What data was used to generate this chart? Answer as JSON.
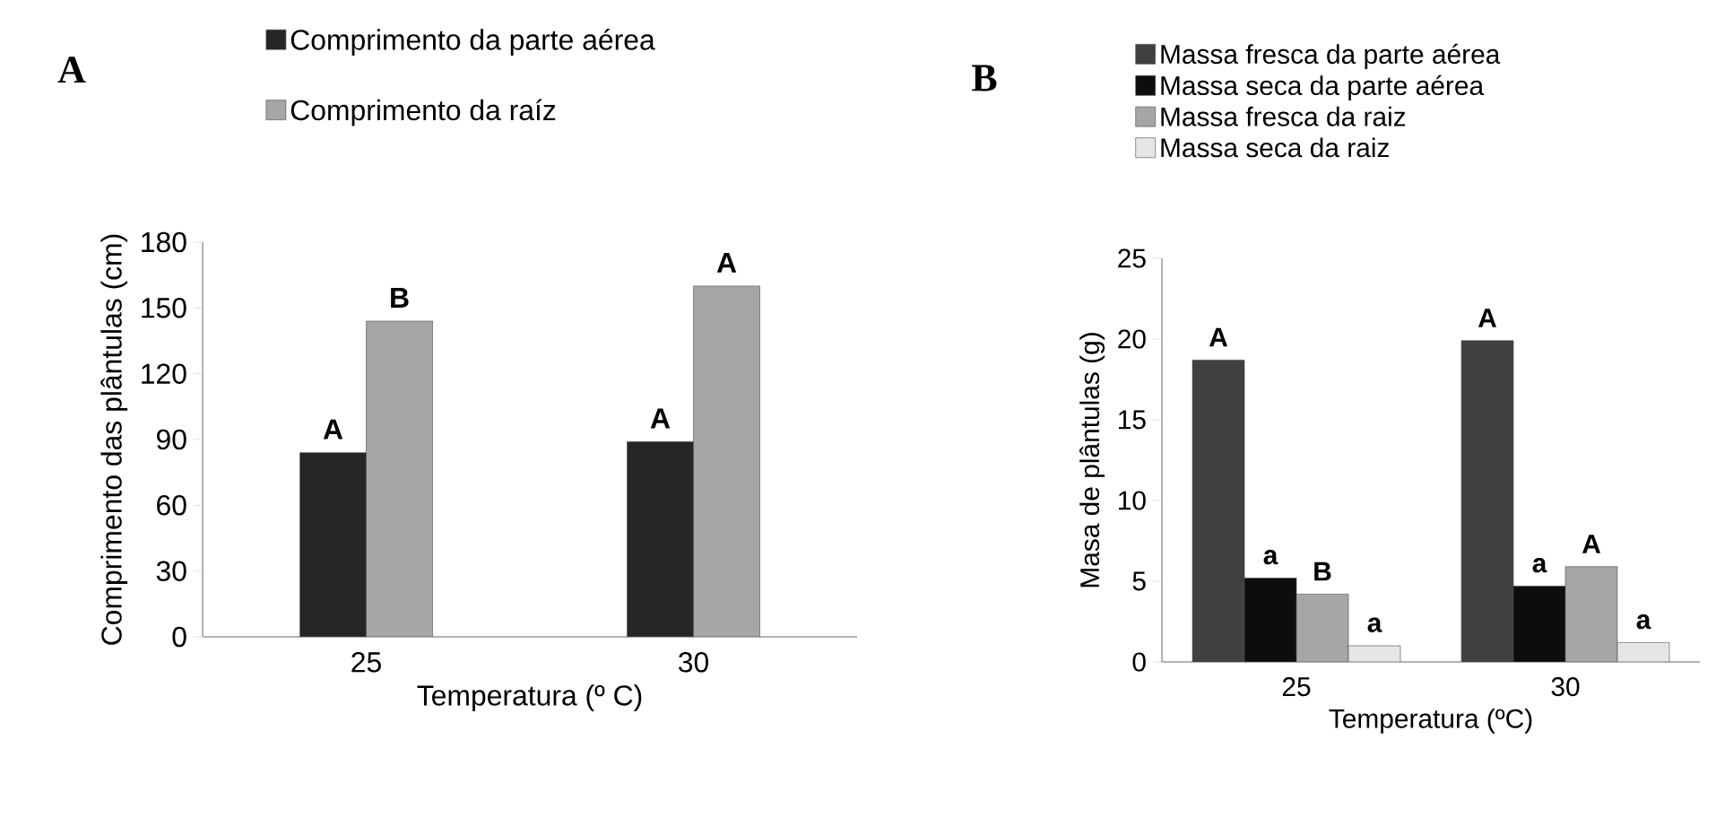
{
  "chart_data": [
    {
      "type": "bar",
      "title": "A",
      "xlabel": "Temperatura (º C)",
      "ylabel": "Comprimento das plântulas (cm)",
      "categories": [
        "25",
        "30"
      ],
      "ylim": [
        0,
        180
      ],
      "yticks": [
        0,
        30,
        60,
        90,
        120,
        150,
        180
      ],
      "legend": "top left",
      "grid": false,
      "series": [
        {
          "name": "Comprimento da parte aérea",
          "color": "#262626",
          "values": [
            84,
            89
          ],
          "value_labels": [
            "A",
            "A"
          ]
        },
        {
          "name": "Comprimento da raíz",
          "color": "#a6a6a6",
          "values": [
            144,
            160
          ],
          "value_labels": [
            "B",
            "A"
          ]
        }
      ]
    },
    {
      "type": "bar",
      "title": "B",
      "xlabel": "Temperatura (ºC)",
      "ylabel": "Masa de plântulas (g)",
      "categories": [
        "25",
        "30"
      ],
      "ylim": [
        0,
        25
      ],
      "yticks": [
        0,
        5,
        10,
        15,
        20,
        25
      ],
      "legend": "top left",
      "grid": false,
      "series": [
        {
          "name": "Massa fresca da parte aérea",
          "color": "#404040",
          "values": [
            18.7,
            19.9
          ],
          "value_labels": [
            "A",
            "A"
          ]
        },
        {
          "name": "Massa   seca da parte aérea",
          "color": "#0d0d0d",
          "values": [
            5.2,
            4.7
          ],
          "value_labels": [
            "a",
            "a"
          ]
        },
        {
          "name": "Massa fresca da raiz",
          "color": "#a6a6a6",
          "values": [
            4.2,
            5.9
          ],
          "value_labels": [
            "B",
            "A"
          ]
        },
        {
          "name": "Massa seca da raiz",
          "color": "#e6e6e6",
          "values": [
            1.0,
            1.2
          ],
          "value_labels": [
            "a",
            "a"
          ]
        }
      ]
    }
  ]
}
